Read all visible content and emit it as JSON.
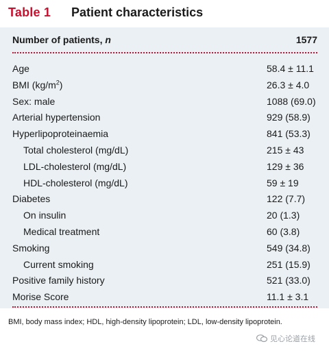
{
  "table": {
    "number": "Table 1",
    "title": "Patient characteristics",
    "header": {
      "label": "Number of patients, n",
      "value": "1577"
    },
    "rows": [
      {
        "label": "Age",
        "value": "58.4 ± 11.1",
        "indent": false
      },
      {
        "label": "BMI (kg/m",
        "sup": "2",
        "suffix": ")",
        "value": "26.3 ± 4.0",
        "indent": false
      },
      {
        "label": "Sex: male",
        "value": "1088 (69.0)",
        "indent": false
      },
      {
        "label": "Arterial hypertension",
        "value": "929 (58.9)",
        "indent": false
      },
      {
        "label": "Hyperlipoproteinaemia",
        "value": "841 (53.3)",
        "indent": false
      },
      {
        "label": "Total cholesterol (mg/dL)",
        "value": "215 ± 43",
        "indent": true
      },
      {
        "label": "LDL-cholesterol (mg/dL)",
        "value": "129 ± 36",
        "indent": true
      },
      {
        "label": "HDL-cholesterol (mg/dL)",
        "value": "59 ± 19",
        "indent": true
      },
      {
        "label": "Diabetes",
        "value": "122 (7.7)",
        "indent": false
      },
      {
        "label": "On insulin",
        "value": "20 (1.3)",
        "indent": true
      },
      {
        "label": "Medical treatment",
        "value": "60 (3.8)",
        "indent": true
      },
      {
        "label": "Smoking",
        "value": "549 (34.8)",
        "indent": false
      },
      {
        "label": "Current smoking",
        "value": "251 (15.9)",
        "indent": true
      },
      {
        "label": "Positive family history",
        "value": "521 (33.0)",
        "indent": false
      },
      {
        "label": "Morise Score",
        "value": "11.1 ± 3.1",
        "indent": false
      }
    ],
    "footnote": "BMI, body mass index; HDL, high-density lipoprotein; LDL, low-density lipoprotein."
  },
  "watermark": {
    "text": "见心论道在线",
    "icon": "chat-bubble-icon"
  },
  "colors": {
    "accent": "#c8102e",
    "panel": "#eaf0f3",
    "watermark": "#9aa0a6"
  }
}
